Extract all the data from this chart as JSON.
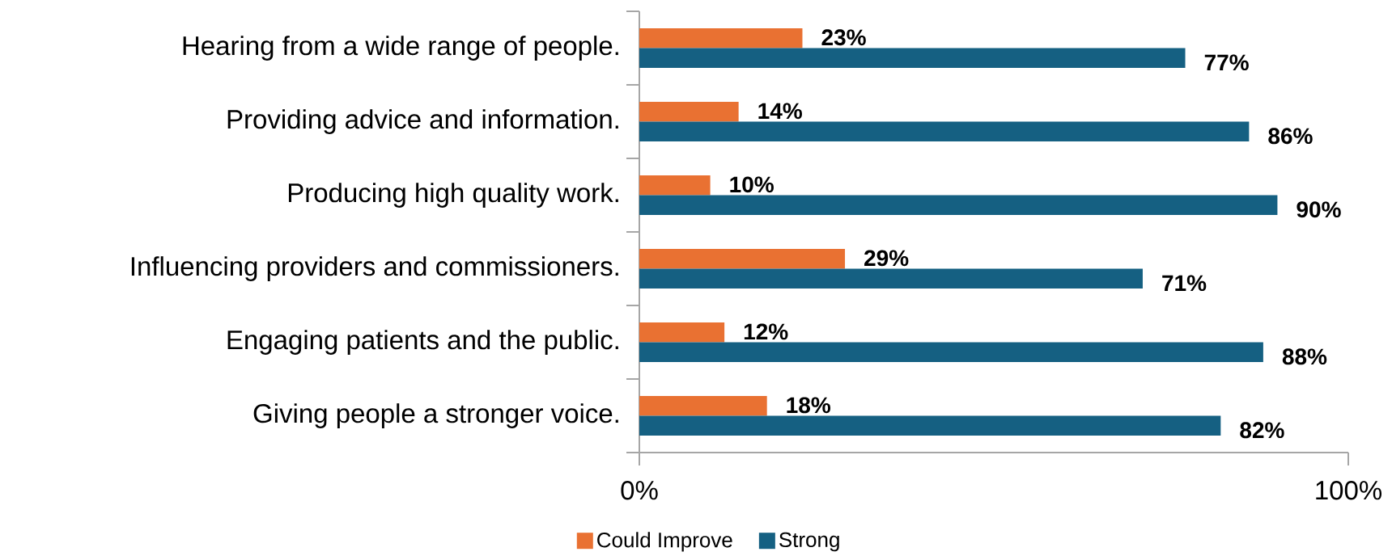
{
  "chart_data": {
    "type": "bar",
    "orientation": "horizontal",
    "categories": [
      "Hearing from a wide range of people.",
      "Providing advice and information.",
      "Producing high quality work.",
      "Influencing providers and commissioners.",
      "Engaging patients and the public.",
      "Giving people a stronger voice."
    ],
    "series": [
      {
        "name": "Could Improve",
        "color": "#e97132",
        "values": [
          23,
          14,
          10,
          29,
          12,
          18
        ],
        "value_labels": [
          "23%",
          "14%",
          "10%",
          "29%",
          "12%",
          "18%"
        ]
      },
      {
        "name": "Strong",
        "color": "#156082",
        "values": [
          77,
          86,
          90,
          71,
          88,
          82
        ],
        "value_labels": [
          "77%",
          "86%",
          "90%",
          "71%",
          "88%",
          "82%"
        ]
      }
    ],
    "xlim": [
      0,
      100
    ],
    "xticks": [
      {
        "value": 0,
        "label": "0%"
      },
      {
        "value": 100,
        "label": "100%"
      }
    ],
    "legend": "bottom"
  }
}
